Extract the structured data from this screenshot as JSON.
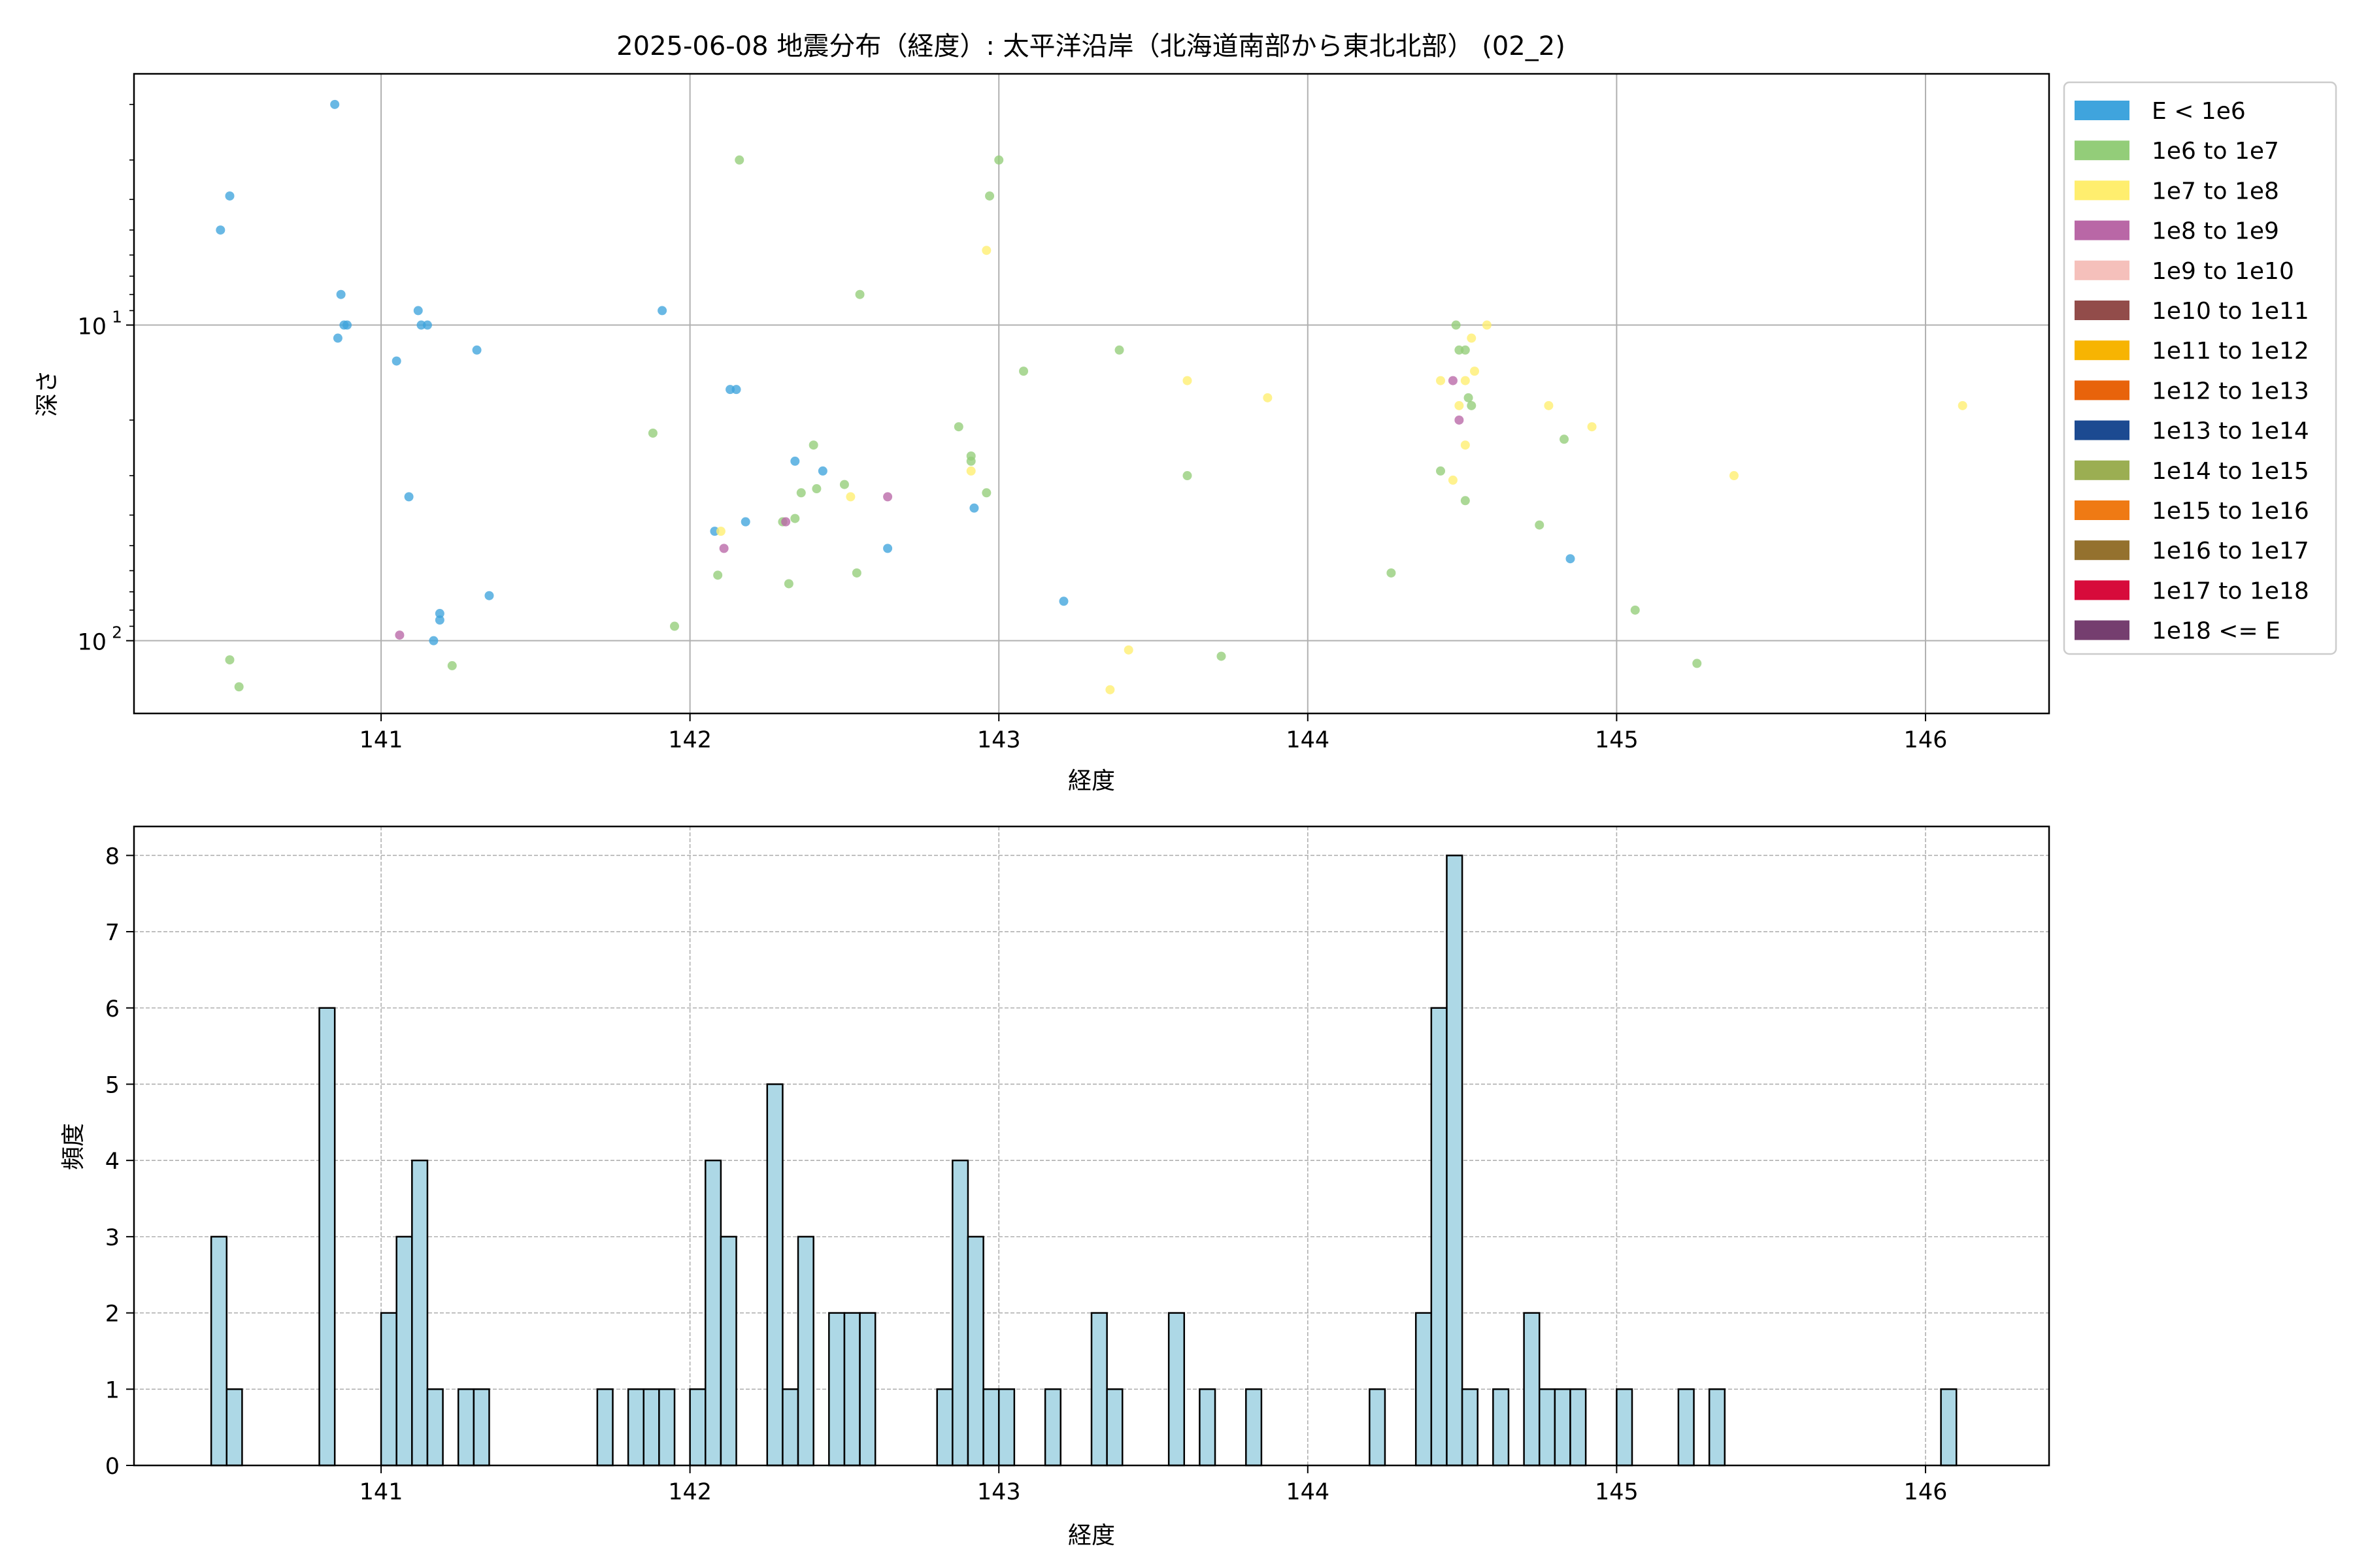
{
  "title": "2025-06-08 地震分布（経度）: 太平洋沿岸（北海道南部から東北北部） (02_2)",
  "chart_data": [
    {
      "type": "scatter",
      "xlabel": "経度",
      "ylabel": "深さ",
      "xlim": [
        140.2,
        146.4
      ],
      "ylim": [
        170,
        1.6
      ],
      "y_scale": "log",
      "y_inverted": true,
      "grid": true,
      "x_ticks": [
        "141",
        "142",
        "143",
        "144",
        "145",
        "146"
      ],
      "x_tick_values": [
        141,
        142,
        143,
        144,
        145,
        146
      ],
      "y_ticks": [
        "10",
        "10"
      ],
      "y_tick_exponents": [
        "1",
        "2"
      ],
      "y_tick_values": [
        10,
        100
      ],
      "legend_position": "outside-right",
      "legend": [
        {
          "label": "E < 1e6",
          "color": "#3fa4dd"
        },
        {
          "label": "1e6 to 1e7",
          "color": "#93cd79"
        },
        {
          "label": "1e7 to 1e8",
          "color": "#ffee6e"
        },
        {
          "label": "1e8 to 1e9",
          "color": "#b967a6"
        },
        {
          "label": "1e9 to 1e10",
          "color": "#f5c0bb"
        },
        {
          "label": "1e10 to 1e11",
          "color": "#924c4a"
        },
        {
          "label": "1e11 to 1e12",
          "color": "#f7b402"
        },
        {
          "label": "1e12 to 1e13",
          "color": "#e8630b"
        },
        {
          "label": "1e13 to 1e14",
          "color": "#1c4a91"
        },
        {
          "label": "1e14 to 1e15",
          "color": "#9bae52"
        },
        {
          "label": "1e15 to 1e16",
          "color": "#ef7a14"
        },
        {
          "label": "1e16 to 1e17",
          "color": "#94712e"
        },
        {
          "label": "1e17 to 1e18",
          "color": "#d70b3b"
        },
        {
          "label": "1e18 <= E",
          "color": "#753e6f"
        }
      ],
      "series": [
        {
          "name": "E < 1e6",
          "color": "#3fa4dd",
          "points": [
            [
              140.48,
              5.0
            ],
            [
              140.51,
              3.9
            ],
            [
              140.85,
              2.0
            ],
            [
              140.87,
              8.0
            ],
            [
              140.88,
              10.0
            ],
            [
              140.86,
              11.0
            ],
            [
              140.89,
              10.0
            ],
            [
              141.05,
              13.0
            ],
            [
              141.09,
              35.0
            ],
            [
              141.12,
              9.0
            ],
            [
              141.13,
              10.0
            ],
            [
              141.15,
              10.0
            ],
            [
              141.19,
              82.0
            ],
            [
              141.19,
              86.0
            ],
            [
              141.17,
              100.0
            ],
            [
              141.31,
              12.0
            ],
            [
              141.35,
              72.0
            ],
            [
              141.91,
              9.0
            ],
            [
              142.08,
              45.0
            ],
            [
              142.13,
              16.0
            ],
            [
              142.15,
              16.0
            ],
            [
              142.18,
              42.0
            ],
            [
              142.34,
              27.0
            ],
            [
              142.43,
              29.0
            ],
            [
              142.64,
              51.0
            ],
            [
              142.92,
              38.0
            ],
            [
              143.21,
              75.0
            ],
            [
              144.85,
              55.0
            ]
          ]
        },
        {
          "name": "1e6 to 1e7",
          "color": "#93cd79",
          "points": [
            [
              140.51,
              115.0
            ],
            [
              140.54,
              140.0
            ],
            [
              141.23,
              120.0
            ],
            [
              141.88,
              22.0
            ],
            [
              141.95,
              90.0
            ],
            [
              142.09,
              62.0
            ],
            [
              142.16,
              3.0
            ],
            [
              142.3,
              42.0
            ],
            [
              142.32,
              66.0
            ],
            [
              142.34,
              41.0
            ],
            [
              142.36,
              34.0
            ],
            [
              142.4,
              24.0
            ],
            [
              142.41,
              33.0
            ],
            [
              142.5,
              32.0
            ],
            [
              142.54,
              61.0
            ],
            [
              142.55,
              8.0
            ],
            [
              142.87,
              21.0
            ],
            [
              142.91,
              26.0
            ],
            [
              142.91,
              27.0
            ],
            [
              142.96,
              34.0
            ],
            [
              142.97,
              3.9
            ],
            [
              143.0,
              3.0
            ],
            [
              143.08,
              14.0
            ],
            [
              143.39,
              12.0
            ],
            [
              143.61,
              30.0
            ],
            [
              143.72,
              112.0
            ],
            [
              144.27,
              61.0
            ],
            [
              144.43,
              29.0
            ],
            [
              144.48,
              10.0
            ],
            [
              144.49,
              12.0
            ],
            [
              144.51,
              12.0
            ],
            [
              144.51,
              36.0
            ],
            [
              144.52,
              17.0
            ],
            [
              144.53,
              18.0
            ],
            [
              144.75,
              43.0
            ],
            [
              144.83,
              23.0
            ],
            [
              145.06,
              80.0
            ],
            [
              145.26,
              118.0
            ]
          ]
        },
        {
          "name": "1e7 to 1e8",
          "color": "#ffee6e",
          "points": [
            [
              142.1,
              45.0
            ],
            [
              142.52,
              35.0
            ],
            [
              142.91,
              29.0
            ],
            [
              142.96,
              5.8
            ],
            [
              143.36,
              143.0
            ],
            [
              143.42,
              107.0
            ],
            [
              143.61,
              15.0
            ],
            [
              143.87,
              17.0
            ],
            [
              144.43,
              15.0
            ],
            [
              144.47,
              31.0
            ],
            [
              144.49,
              18.0
            ],
            [
              144.51,
              15.0
            ],
            [
              144.51,
              24.0
            ],
            [
              144.53,
              11.0
            ],
            [
              144.54,
              14.0
            ],
            [
              144.58,
              10.0
            ],
            [
              144.78,
              18.0
            ],
            [
              144.92,
              21.0
            ],
            [
              145.38,
              30.0
            ],
            [
              146.12,
              18.0
            ]
          ]
        },
        {
          "name": "1e8 to 1e9",
          "color": "#b967a6",
          "points": [
            [
              141.06,
              96.0
            ],
            [
              142.11,
              51.0
            ],
            [
              142.31,
              42.0
            ],
            [
              142.64,
              35.0
            ],
            [
              144.47,
              15.0
            ],
            [
              144.49,
              20.0
            ]
          ]
        }
      ]
    },
    {
      "type": "bar",
      "xlabel": "経度",
      "ylabel": "頻度",
      "xlim": [
        140.2,
        146.4
      ],
      "ylim": [
        0,
        8.38
      ],
      "grid": true,
      "x_ticks": [
        "141",
        "142",
        "143",
        "144",
        "145",
        "146"
      ],
      "x_tick_values": [
        141,
        142,
        143,
        144,
        145,
        146
      ],
      "y_ticks": [
        "0",
        "1",
        "2",
        "3",
        "4",
        "5",
        "6",
        "7",
        "8"
      ],
      "y_tick_values": [
        0,
        1,
        2,
        3,
        4,
        5,
        6,
        7,
        8
      ],
      "bar_color": "#add8e6",
      "bin_width": 0.05,
      "bins": [
        [
          140.475,
          3
        ],
        [
          140.525,
          1
        ],
        [
          140.825,
          6
        ],
        [
          141.025,
          2
        ],
        [
          141.075,
          3
        ],
        [
          141.125,
          4
        ],
        [
          141.175,
          1
        ],
        [
          141.275,
          1
        ],
        [
          141.325,
          1
        ],
        [
          141.725,
          1
        ],
        [
          141.825,
          1
        ],
        [
          141.875,
          1
        ],
        [
          141.925,
          1
        ],
        [
          142.025,
          1
        ],
        [
          142.075,
          4
        ],
        [
          142.125,
          3
        ],
        [
          142.275,
          5
        ],
        [
          142.325,
          1
        ],
        [
          142.375,
          3
        ],
        [
          142.475,
          2
        ],
        [
          142.525,
          2
        ],
        [
          142.575,
          2
        ],
        [
          142.825,
          1
        ],
        [
          142.875,
          4
        ],
        [
          142.925,
          3
        ],
        [
          142.975,
          1
        ],
        [
          143.025,
          1
        ],
        [
          143.175,
          1
        ],
        [
          143.325,
          2
        ],
        [
          143.375,
          1
        ],
        [
          143.575,
          2
        ],
        [
          143.675,
          1
        ],
        [
          143.825,
          1
        ],
        [
          144.225,
          1
        ],
        [
          144.375,
          2
        ],
        [
          144.425,
          6
        ],
        [
          144.475,
          8
        ],
        [
          144.525,
          1
        ],
        [
          144.625,
          1
        ],
        [
          144.725,
          2
        ],
        [
          144.775,
          1
        ],
        [
          144.825,
          1
        ],
        [
          144.875,
          1
        ],
        [
          145.025,
          1
        ],
        [
          145.225,
          1
        ],
        [
          145.325,
          1
        ],
        [
          146.075,
          1
        ]
      ]
    }
  ]
}
